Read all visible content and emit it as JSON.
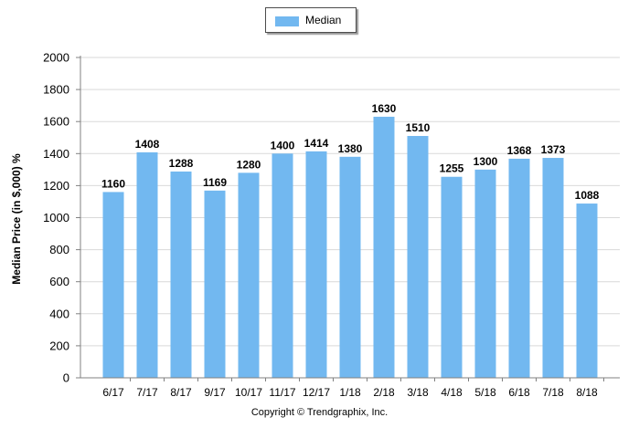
{
  "legend": {
    "label": "Median",
    "color": "#72b8f0"
  },
  "footer": {
    "copyright": "Copyright © Trendgraphix, Inc."
  },
  "chart_data": {
    "type": "bar",
    "categories": [
      "6/17",
      "7/17",
      "8/17",
      "9/17",
      "10/17",
      "11/17",
      "12/17",
      "1/18",
      "2/18",
      "3/18",
      "4/18",
      "5/18",
      "6/18",
      "7/18",
      "8/18"
    ],
    "series": [
      {
        "name": "Median",
        "values": [
          1160,
          1408,
          1288,
          1169,
          1280,
          1400,
          1414,
          1380,
          1630,
          1510,
          1255,
          1300,
          1368,
          1373,
          1088
        ]
      }
    ],
    "ylabel": "Median Price (in $,000) %",
    "xlabel": "",
    "ylim": [
      0,
      2000
    ],
    "yticks": [
      0,
      200,
      400,
      600,
      800,
      1000,
      1200,
      1400,
      1600,
      1800,
      2000
    ],
    "grid": true,
    "legend_position": "top-center",
    "data_labels": true
  }
}
